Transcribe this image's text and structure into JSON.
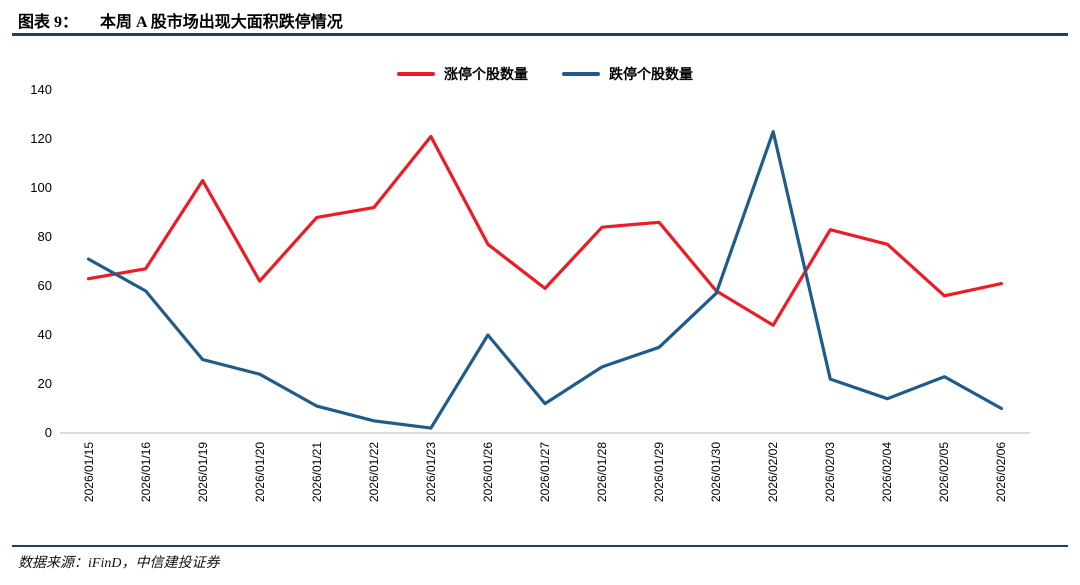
{
  "header": {
    "figure_label": "图表 9：",
    "title": "本周 A 股市场出现大面积跌停情况"
  },
  "footer": {
    "source": "数据来源：iFinD，中信建投证券"
  },
  "chart_data": {
    "type": "line",
    "title": "本周 A 股市场出现大面积跌停情况",
    "figure_label": "图表 9",
    "categories": [
      "2026/01/15",
      "2026/01/16",
      "2026/01/19",
      "2026/01/20",
      "2026/01/21",
      "2026/01/22",
      "2026/01/23",
      "2026/01/26",
      "2026/01/27",
      "2026/01/28",
      "2026/01/29",
      "2026/01/30",
      "2026/02/02",
      "2026/02/03",
      "2026/02/04",
      "2026/02/05",
      "2026/02/06"
    ],
    "series": [
      {
        "name": "涨停个股数量",
        "color": "#ed1c24",
        "values": [
          63,
          67,
          103,
          62,
          88,
          92,
          121,
          77,
          59,
          84,
          86,
          58,
          44,
          83,
          77,
          56,
          61
        ]
      },
      {
        "name": "跌停个股数量",
        "color": "#1f5c8b",
        "values": [
          71,
          58,
          30,
          24,
          11,
          5,
          2,
          40,
          12,
          27,
          35,
          57,
          123,
          22,
          14,
          23,
          10
        ]
      }
    ],
    "xlabel": "",
    "ylabel": "",
    "ylim": [
      0,
      140
    ],
    "ytick_step": 20,
    "grid": "off",
    "legend_position": "top",
    "axis_color": "#c6c6c6",
    "rule_color": "#1c3f6e"
  }
}
